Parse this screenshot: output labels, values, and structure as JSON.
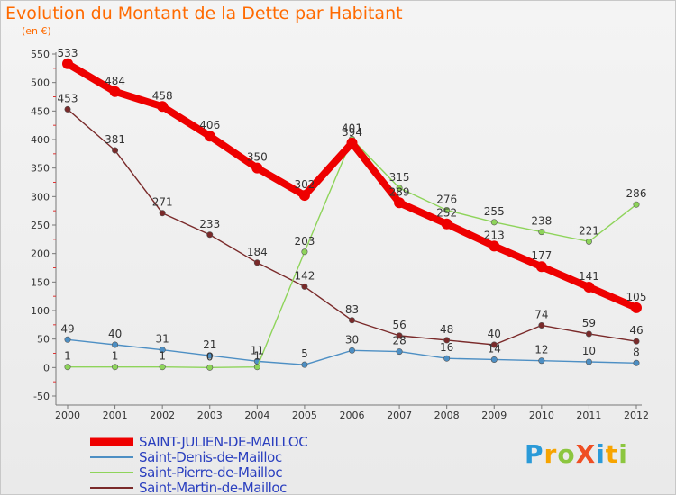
{
  "header": {
    "title": "Evolution du Montant de la Dette par Habitant",
    "unit": "(en €)"
  },
  "logo": {
    "text": "ProXiti",
    "letters": [
      "P",
      "r",
      "o",
      "X",
      "i",
      "t",
      "i"
    ],
    "colors": [
      "#2a9ad8",
      "#f7a400",
      "#8cc63f",
      "#ef4e23",
      "#2a9ad8",
      "#f7a400",
      "#8cc63f"
    ]
  },
  "chart_data": {
    "type": "line",
    "title": "Evolution du Montant de la Dette par Habitant",
    "subtitle": "(en €)",
    "x": [
      "2000",
      "2001",
      "2002",
      "2003",
      "2004",
      "2005",
      "2006",
      "2007",
      "2008",
      "2009",
      "2010",
      "2011",
      "2012"
    ],
    "ylim": [
      -50,
      550
    ],
    "yticks": [
      -50,
      0,
      50,
      100,
      150,
      200,
      250,
      300,
      350,
      400,
      450,
      500,
      550
    ],
    "grid": false,
    "legend_position": "bottom-left",
    "series": [
      {
        "name": "SAINT-JULIEN-DE-MAILLOC",
        "color": "#ee0000",
        "values": [
          533,
          484,
          458,
          406,
          350,
          302,
          394,
          289,
          252,
          213,
          177,
          141,
          105
        ],
        "labels": [
          "533",
          "484",
          "458",
          "406",
          "350",
          "302",
          "394",
          "289",
          "252",
          "213",
          "177",
          "141",
          "105"
        ]
      },
      {
        "name": "Saint-Denis-de-Mailloc",
        "color": "#4d8fc4",
        "values": [
          49,
          40,
          31,
          21,
          11,
          5,
          30,
          28,
          16,
          14,
          12,
          10,
          8
        ],
        "labels": [
          "49",
          "40",
          "31",
          "21",
          "11",
          "5",
          "30",
          "28",
          "16",
          "14",
          "12",
          "10",
          "8"
        ]
      },
      {
        "name": "Saint-Pierre-de-Mailloc",
        "color": "#8ed45a",
        "values": [
          1,
          1,
          1,
          0,
          1,
          203,
          401,
          315,
          276,
          255,
          238,
          221,
          286
        ],
        "labels": [
          "1",
          "1",
          "1",
          "0",
          "1",
          "203",
          "401",
          "315",
          "276",
          "255",
          "238",
          "221",
          "286"
        ]
      },
      {
        "name": "Saint-Martin-de-Mailloc",
        "color": "#7a2a2a",
        "values": [
          453,
          381,
          271,
          233,
          184,
          142,
          83,
          56,
          48,
          40,
          74,
          59,
          46
        ],
        "labels": [
          "453",
          "381",
          "271",
          "233",
          "184",
          "142",
          "83",
          "56",
          "48",
          "40",
          "74",
          "59",
          "46"
        ]
      }
    ]
  }
}
